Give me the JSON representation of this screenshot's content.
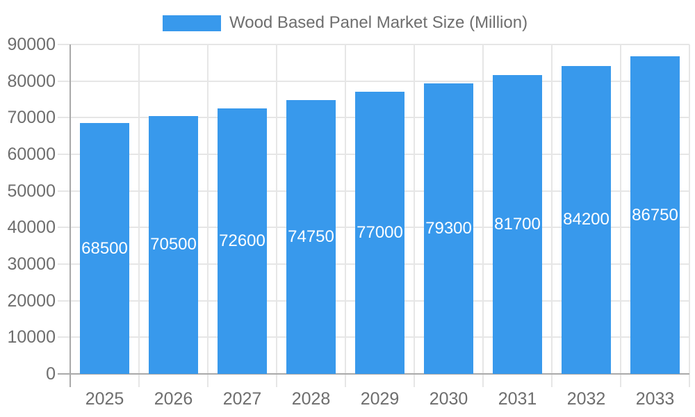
{
  "legend": {
    "label": "Wood Based Panel Market Size (Million)"
  },
  "colors": {
    "bar": "#3899ec",
    "grid": "#e6e6e6",
    "axis": "#a9a9a9",
    "axis_text": "#6e6e6e",
    "value_label": "#ffffff",
    "background": "#ffffff"
  },
  "chart_data": {
    "type": "bar",
    "title": "Wood Based Panel Market Size (Million)",
    "categories": [
      "2025",
      "2026",
      "2027",
      "2028",
      "2029",
      "2030",
      "2031",
      "2032",
      "2033"
    ],
    "series": [
      {
        "name": "Wood Based Panel Market Size (Million)",
        "color": "#3899ec",
        "values": [
          68500,
          70500,
          72600,
          74750,
          77000,
          79300,
          81700,
          84200,
          86750
        ]
      }
    ],
    "xlabel": "",
    "ylabel": "",
    "ylim": [
      0,
      90000
    ],
    "yticks": [
      0,
      10000,
      20000,
      30000,
      40000,
      50000,
      60000,
      70000,
      80000,
      90000
    ],
    "yticklabels": [
      "0",
      "10000",
      "20000",
      "30000",
      "40000",
      "50000",
      "60000",
      "70000",
      "80000",
      "90000"
    ],
    "grid": true,
    "legend_position": "top-center",
    "value_labels_position": "inside-center"
  }
}
